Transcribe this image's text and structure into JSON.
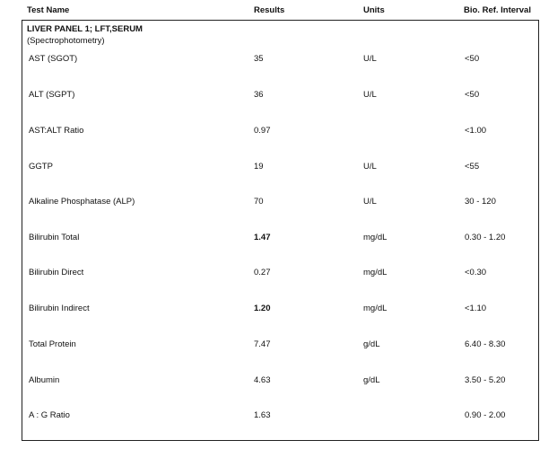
{
  "header": {
    "test_name": "Test Name",
    "results": "Results",
    "units": "Units",
    "ref_interval": "Bio. Ref. Interval"
  },
  "panel": {
    "title": "LIVER PANEL 1; LFT,SERUM",
    "method": "(Spectrophotometry)",
    "rows": [
      {
        "name": "AST (SGOT)",
        "result": "35",
        "units": "U/L",
        "ref": "<50",
        "flagged": false
      },
      {
        "name": "ALT (SGPT)",
        "result": "36",
        "units": "U/L",
        "ref": "<50",
        "flagged": false
      },
      {
        "name": "AST:ALT Ratio",
        "result": "0.97",
        "units": "",
        "ref": "<1.00",
        "flagged": false
      },
      {
        "name": "GGTP",
        "result": "19",
        "units": "U/L",
        "ref": "<55",
        "flagged": false
      },
      {
        "name": "Alkaline Phosphatase (ALP)",
        "result": "70",
        "units": "U/L",
        "ref": "30 - 120",
        "flagged": false
      },
      {
        "name": "Bilirubin  Total",
        "result": "1.47",
        "units": "mg/dL",
        "ref": "0.30 - 1.20",
        "flagged": true
      },
      {
        "name": "Bilirubin  Direct",
        "result": "0.27",
        "units": "mg/dL",
        "ref": "<0.30",
        "flagged": false
      },
      {
        "name": "Bilirubin  Indirect",
        "result": "1.20",
        "units": "mg/dL",
        "ref": "<1.10",
        "flagged": true
      },
      {
        "name": "Total Protein",
        "result": "7.47",
        "units": "g/dL",
        "ref": "6.40 - 8.30",
        "flagged": false
      },
      {
        "name": "Albumin",
        "result": "4.63",
        "units": "g/dL",
        "ref": "3.50 - 5.20",
        "flagged": false
      },
      {
        "name": "A : G Ratio",
        "result": "1.63",
        "units": "",
        "ref": "0.90 - 2.00",
        "flagged": false
      }
    ]
  }
}
